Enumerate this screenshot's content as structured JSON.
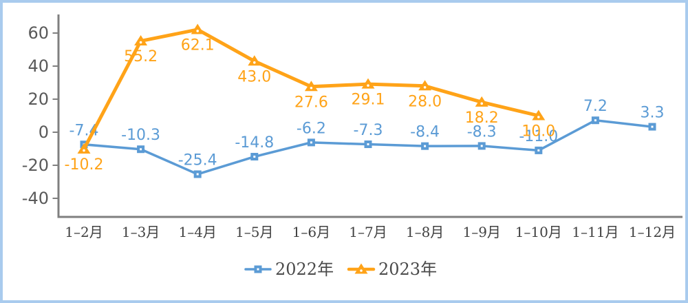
{
  "frame": {
    "border_color": "#a9cbee",
    "background_color": "#ffffff"
  },
  "chart_data": {
    "type": "line",
    "title": "",
    "categories": [
      "1–2月",
      "1–3月",
      "1–4月",
      "1–5月",
      "1–6月",
      "1–7月",
      "1–8月",
      "1–9月",
      "1–10月",
      "1–11月",
      "1–12月"
    ],
    "series": [
      {
        "name": "2022年",
        "marker": "square",
        "color": "#5b9bd5",
        "label_position": "above",
        "values": [
          -7.4,
          -10.3,
          -25.4,
          -14.8,
          -6.2,
          -7.3,
          -8.4,
          -8.3,
          -11.0,
          7.2,
          3.3
        ]
      },
      {
        "name": "2023年",
        "marker": "triangle",
        "color": "#ffa318",
        "label_position": "below",
        "values": [
          -10.2,
          55.2,
          62.1,
          43.0,
          27.6,
          29.1,
          28.0,
          18.2,
          10.0
        ]
      }
    ],
    "y_axis": {
      "ticks": [
        60,
        40,
        20,
        0,
        -20,
        -40
      ],
      "min": -40,
      "max": 60,
      "tick_interval": 20
    },
    "x_axis": {
      "label": ""
    },
    "grid": false,
    "legend": {
      "position": "bottom",
      "entries": [
        "2022年",
        "2023年"
      ]
    },
    "colors": {
      "axis_line": "#7f7f7f",
      "y_tick_label": "#595959",
      "x_tick_label": "#404040",
      "legend_text": "#4a4a4a",
      "marker_dot": "#ffffff"
    }
  }
}
